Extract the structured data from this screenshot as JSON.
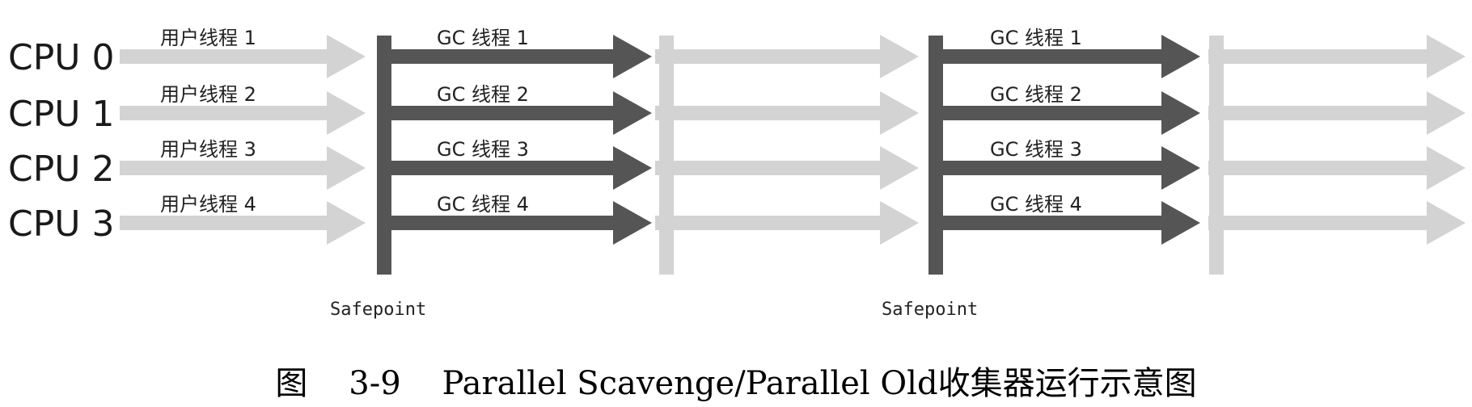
{
  "cpus": [
    "CPU 0",
    "CPU 1",
    "CPU 2",
    "CPU 3"
  ],
  "segments": [
    {
      "kind": "user",
      "labels": [
        "用户线程 1",
        "用户线程 2",
        "用户线程 3",
        "用户线程 4"
      ]
    },
    {
      "kind": "gc",
      "labels": [
        "GC 线程 1",
        "GC 线程 2",
        "GC 线程 3",
        "GC 线程 4"
      ]
    },
    {
      "kind": "user",
      "labels": []
    },
    {
      "kind": "gc",
      "labels": [
        "GC 线程 1",
        "GC 线程 2",
        "GC 线程 3",
        "GC 线程 4"
      ]
    },
    {
      "kind": "user",
      "labels": []
    }
  ],
  "barriers": [
    {
      "kind": "safepoint",
      "label": "Safepoint"
    },
    {
      "kind": "resume",
      "label": ""
    },
    {
      "kind": "safepoint",
      "label": "Safepoint"
    },
    {
      "kind": "resume",
      "label": ""
    }
  ],
  "caption": "图    3-9    Parallel Scavenge/Parallel Old收集器运行示意图",
  "colors": {
    "user_thread": "#d3d3d3",
    "gc_thread": "#555555",
    "safepoint_bar": "#555555",
    "resume_bar": "#d3d3d3"
  }
}
